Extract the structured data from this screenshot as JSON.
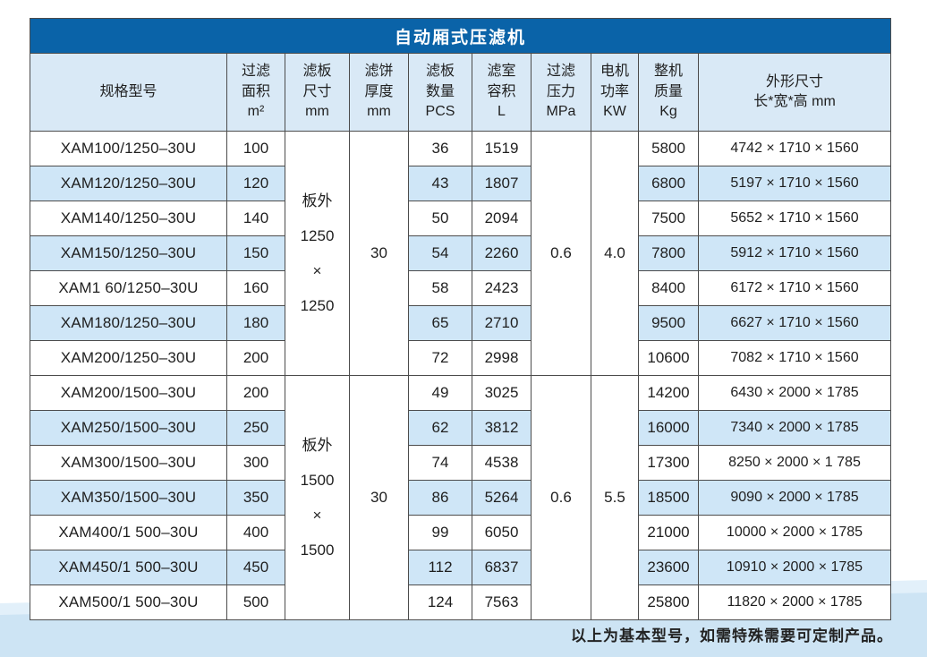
{
  "table_title": "自动厢式压滤机",
  "footer_note": "以上为基本型号，如需特殊需要可定制产品。",
  "colors": {
    "title_bar": "#0A63A8",
    "header_bg": "#D9E9F6",
    "row_alt_bg": "#CFE6F7",
    "row_bg": "#FFFFFF",
    "bottom_band": "#CDE4F4",
    "bottom_band_light": "#E2F0FA",
    "border": "#4C4C4C"
  },
  "columns": [
    {
      "key": "model",
      "label": "规格型号"
    },
    {
      "key": "filter-area",
      "label": "过滤\n面积\nm²"
    },
    {
      "key": "plate-size",
      "label": "滤板\n尺寸\nmm"
    },
    {
      "key": "cake-thickness",
      "label": "滤饼\n厚度\nmm"
    },
    {
      "key": "plate-qty",
      "label": "滤板\n数量\nPCS"
    },
    {
      "key": "chamber-volume",
      "label": "滤室\n容积\nL"
    },
    {
      "key": "filter-pressure",
      "label": "过滤\n压力\nMPa"
    },
    {
      "key": "motor-power",
      "label": "电机\n功率\nKW"
    },
    {
      "key": "weight",
      "label": "整机\n质量\nKg"
    },
    {
      "key": "dimensions",
      "label": "外形尺寸\n长*宽*高 mm"
    }
  ],
  "sections": [
    {
      "plate_size_lines": [
        "板外",
        "1250",
        "×",
        "1250"
      ],
      "cake_thickness": "30",
      "filter_pressure": "0.6",
      "motor_power": "4.0",
      "rows": [
        {
          "model": "XAM100/1250–30U",
          "area": "100",
          "pcs": "36",
          "volume": "1519",
          "weight": "5800",
          "dims": "4742 × 1710 × 1560"
        },
        {
          "model": "XAM120/1250–30U",
          "area": "120",
          "pcs": "43",
          "volume": "1807",
          "weight": "6800",
          "dims": "5197 × 1710 × 1560"
        },
        {
          "model": "XAM140/1250–30U",
          "area": "140",
          "pcs": "50",
          "volume": "2094",
          "weight": "7500",
          "dims": "5652 × 1710 × 1560"
        },
        {
          "model": "XAM150/1250–30U",
          "area": "150",
          "pcs": "54",
          "volume": "2260",
          "weight": "7800",
          "dims": "5912 × 1710 × 1560"
        },
        {
          "model": "XAM1 60/1250–30U",
          "area": "160",
          "pcs": "58",
          "volume": "2423",
          "weight": "8400",
          "dims": "6172 × 1710 × 1560"
        },
        {
          "model": "XAM180/1250–30U",
          "area": "180",
          "pcs": "65",
          "volume": "2710",
          "weight": "9500",
          "dims": "6627 × 1710 × 1560"
        },
        {
          "model": "XAM200/1250–30U",
          "area": "200",
          "pcs": "72",
          "volume": "2998",
          "weight": "10600",
          "dims": "7082 × 1710 × 1560"
        }
      ]
    },
    {
      "plate_size_lines": [
        "板外",
        "1500",
        "×",
        "1500"
      ],
      "cake_thickness": "30",
      "filter_pressure": "0.6",
      "motor_power": "5.5",
      "rows": [
        {
          "model": "XAM200/1500–30U",
          "area": "200",
          "pcs": "49",
          "volume": "3025",
          "weight": "14200",
          "dims": "6430 × 2000 × 1785"
        },
        {
          "model": "XAM250/1500–30U",
          "area": "250",
          "pcs": "62",
          "volume": "3812",
          "weight": "16000",
          "dims": "7340 × 2000 × 1785"
        },
        {
          "model": "XAM300/1500–30U",
          "area": "300",
          "pcs": "74",
          "volume": "4538",
          "weight": "17300",
          "dims": "8250 × 2000 × 1 785"
        },
        {
          "model": "XAM350/1500–30U",
          "area": "350",
          "pcs": "86",
          "volume": "5264",
          "weight": "18500",
          "dims": "9090 × 2000 × 1785"
        },
        {
          "model": "XAM400/1 500–30U",
          "area": "400",
          "pcs": "99",
          "volume": "6050",
          "weight": "21000",
          "dims": "10000 × 2000 × 1785"
        },
        {
          "model": "XAM450/1 500–30U",
          "area": "450",
          "pcs": "112",
          "volume": "6837",
          "weight": "23600",
          "dims": "10910 × 2000 × 1785"
        },
        {
          "model": "XAM500/1 500–30U",
          "area": "500",
          "pcs": "124",
          "volume": "7563",
          "weight": "25800",
          "dims": "11820 × 2000 × 1785"
        }
      ]
    }
  ]
}
